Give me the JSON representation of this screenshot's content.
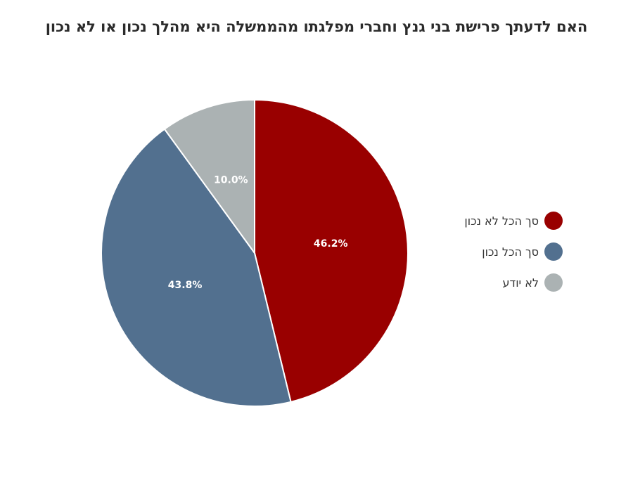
{
  "chart_data": {
    "type": "pie",
    "title": "האם לדעתך פרישת בני גנץ וחברי מפלגתו מהממשלה היא מהלך נכון או לא נכון",
    "categories": [
      "סך הכל לא נכון",
      "סך הכל נכון",
      "לא יודע"
    ],
    "values": [
      46.2,
      43.8,
      10.0
    ],
    "value_labels": [
      "46.2%",
      "43.8%",
      "10.0%"
    ],
    "colors": [
      "#990000",
      "#52708f",
      "#abb2b3"
    ],
    "legend_position": "right",
    "start_angle": "top",
    "direction": "clockwise"
  }
}
